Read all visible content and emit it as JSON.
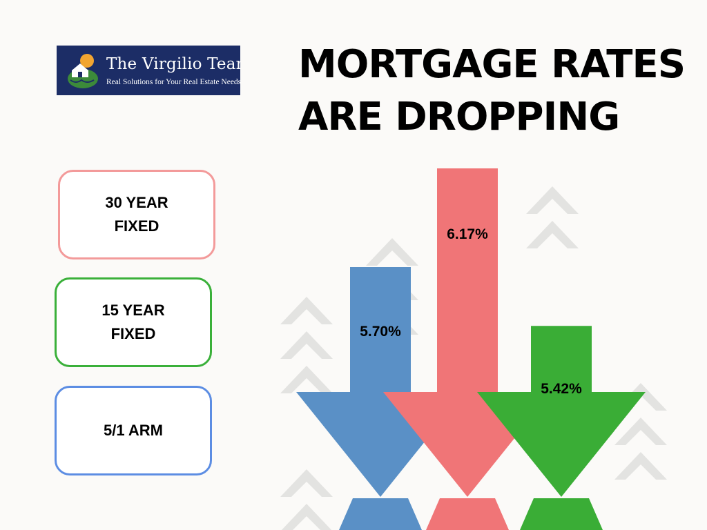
{
  "logo": {
    "name": "The Virgilio Team",
    "tagline": "Real Solutions for Your Real Estate Needs"
  },
  "title": "MORTGAGE RATES ARE DROPPING",
  "legend": [
    {
      "label": "30 YEAR FIXED",
      "color": "#f3a0a0"
    },
    {
      "label": "15 YEAR FIXED",
      "color": "#3aad3a"
    },
    {
      "label": "5/1 ARM",
      "color": "#5a8ee0"
    }
  ],
  "chart_data": {
    "type": "bar",
    "title": "MORTGAGE RATES ARE DROPPING",
    "categories": [
      "5/1 ARM",
      "30 YEAR FIXED",
      "15 YEAR FIXED"
    ],
    "values": [
      5.7,
      6.17,
      5.42
    ],
    "labels": [
      "5.70%",
      "6.17%",
      "5.42%"
    ],
    "colors": [
      "#5a90c6",
      "#f07577",
      "#3aad36"
    ],
    "unit": "%",
    "xlabel": "",
    "ylabel": ""
  }
}
